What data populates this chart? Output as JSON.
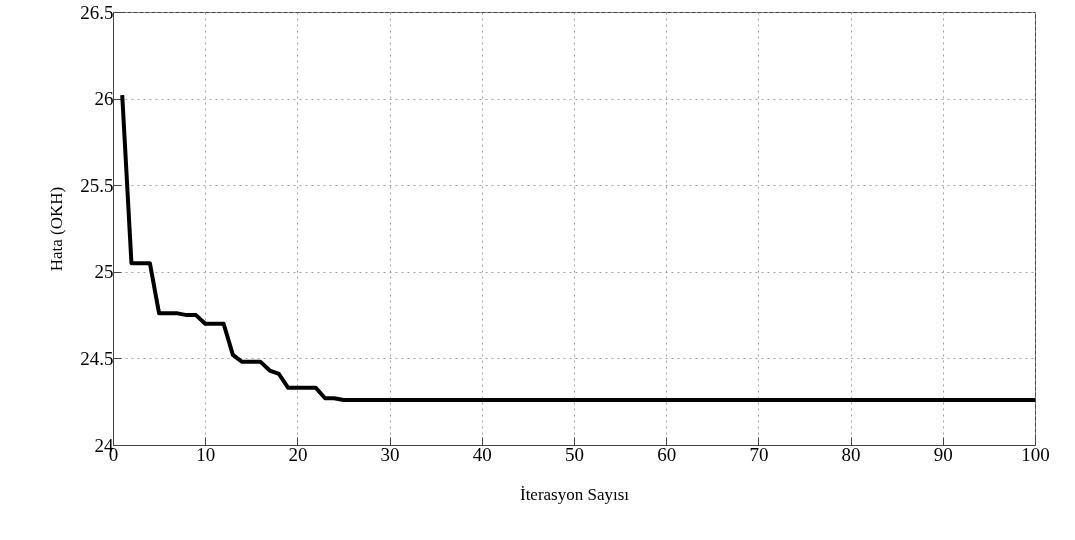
{
  "chart_data": {
    "type": "line",
    "xlabel": "İterasyon Sayısı",
    "ylabel": "Hata (OKH)",
    "x": [
      1,
      2,
      3,
      4,
      5,
      6,
      7,
      8,
      9,
      10,
      11,
      12,
      13,
      14,
      15,
      16,
      17,
      18,
      19,
      20,
      21,
      22,
      23,
      24,
      25,
      30,
      40,
      50,
      60,
      70,
      80,
      90,
      100
    ],
    "series": [
      {
        "color": "#000000",
        "values": [
          26.02,
          25.05,
          25.05,
          25.05,
          24.76,
          24.76,
          24.76,
          24.75,
          24.75,
          24.7,
          24.7,
          24.7,
          24.52,
          24.48,
          24.48,
          24.48,
          24.43,
          24.41,
          24.33,
          24.33,
          24.33,
          24.33,
          24.27,
          24.27,
          24.26,
          24.26,
          24.26,
          24.26,
          24.26,
          24.26,
          24.26,
          24.26,
          24.26
        ]
      }
    ],
    "xlim": [
      0,
      100
    ],
    "xticks": [
      0,
      10,
      20,
      30,
      40,
      50,
      60,
      70,
      80,
      90,
      100
    ],
    "ylim": [
      24,
      26.5
    ],
    "yticks": [
      24,
      24.5,
      25,
      25.5,
      26,
      26.5
    ],
    "grid": true,
    "marker": "none",
    "line_style": "solid"
  }
}
